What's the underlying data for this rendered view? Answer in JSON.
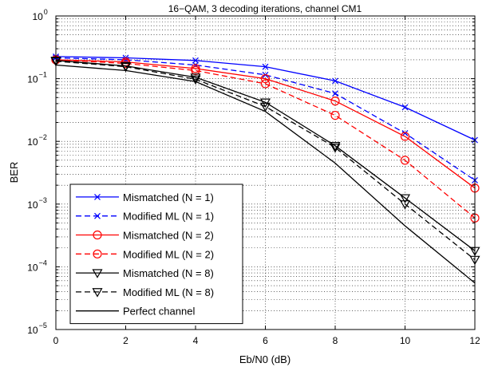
{
  "chart_data": {
    "type": "line",
    "title": "16−QAM, 3 decoding  iterations, channel CM1",
    "xlabel": "Eb/N0 (dB)",
    "ylabel": "BER",
    "x": [
      0,
      2,
      4,
      6,
      8,
      10,
      12
    ],
    "xlim": [
      0,
      12
    ],
    "ylim": [
      1e-05,
      1
    ],
    "yscale": "log",
    "x_ticks": [
      "0",
      "2",
      "4",
      "6",
      "8",
      "10",
      "12"
    ],
    "y_ticks": [
      {
        "base": "10",
        "exp": "−5"
      },
      {
        "base": "10",
        "exp": "−4"
      },
      {
        "base": "10",
        "exp": "−3"
      },
      {
        "base": "10",
        "exp": "−2"
      },
      {
        "base": "10",
        "exp": "−1"
      },
      {
        "base": "10",
        "exp": "0"
      }
    ],
    "grid": true,
    "legend_position": "bottom-left",
    "series": [
      {
        "name": "Mismatched (N = 1)",
        "color": "#0000ff",
        "dash": "solid",
        "marker": "x",
        "values": [
          0.225,
          0.215,
          0.195,
          0.155,
          0.092,
          0.035,
          0.0105
        ]
      },
      {
        "name": "Modified ML (N = 1)",
        "color": "#0000ff",
        "dash": "dashed",
        "marker": "x",
        "values": [
          0.215,
          0.2,
          0.165,
          0.115,
          0.058,
          0.0135,
          0.0024
        ]
      },
      {
        "name": "Mismatched (N = 2)",
        "color": "#ff0000",
        "dash": "solid",
        "marker": "circle",
        "values": [
          0.2,
          0.185,
          0.145,
          0.1,
          0.044,
          0.012,
          0.0018
        ]
      },
      {
        "name": "Modified ML (N = 2)",
        "color": "#ff0000",
        "dash": "dashed",
        "marker": "circle",
        "values": [
          0.2,
          0.175,
          0.135,
          0.083,
          0.026,
          0.005,
          0.0006
        ]
      },
      {
        "name": "Mismatched (N = 8)",
        "color": "#000000",
        "dash": "solid",
        "marker": "triangle-down",
        "values": [
          0.195,
          0.16,
          0.105,
          0.042,
          0.0085,
          0.00125,
          0.00018
        ]
      },
      {
        "name": "Modified ML (N = 8)",
        "color": "#000000",
        "dash": "dashed",
        "marker": "triangle-down",
        "values": [
          0.19,
          0.155,
          0.098,
          0.036,
          0.008,
          0.001,
          0.00013
        ]
      },
      {
        "name": "Perfect channel",
        "color": "#000000",
        "dash": "solid",
        "marker": "none",
        "values": [
          0.165,
          0.135,
          0.09,
          0.03,
          0.0045,
          0.00045,
          5.5e-05
        ]
      }
    ]
  }
}
